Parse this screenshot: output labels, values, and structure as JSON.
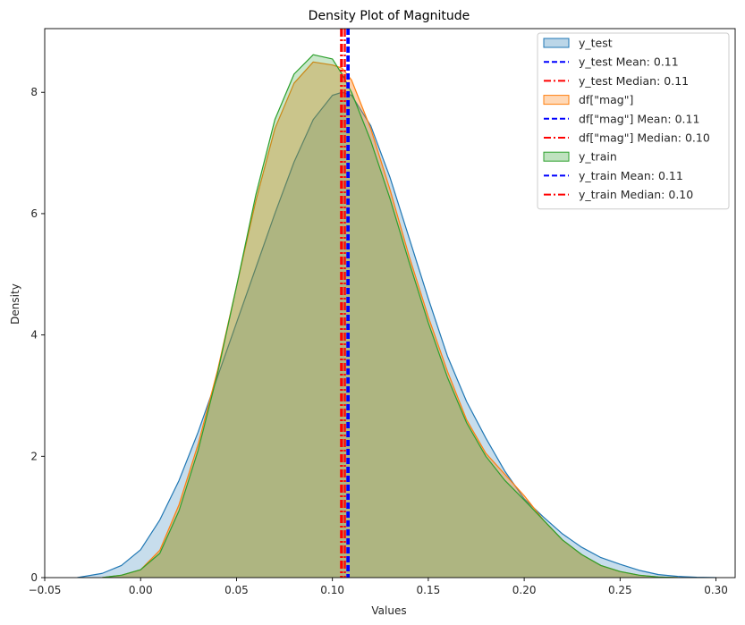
{
  "chart_data": {
    "type": "area",
    "title": "Density Plot of Magnitude",
    "xlabel": "Values",
    "ylabel": "Density",
    "xlim": [
      -0.05,
      0.31
    ],
    "ylim": [
      0,
      9.05
    ],
    "xticks": [
      -0.05,
      0.0,
      0.05,
      0.1,
      0.15,
      0.2,
      0.25,
      0.3
    ],
    "xtick_labels": [
      "−0.05",
      "0.00",
      "0.05",
      "0.10",
      "0.15",
      "0.20",
      "0.25",
      "0.30"
    ],
    "yticks": [
      0,
      2,
      4,
      6,
      8
    ],
    "ytick_labels": [
      "0",
      "2",
      "4",
      "6",
      "8"
    ],
    "grid": false,
    "legend_position": "top-right",
    "series": [
      {
        "name": "y_test",
        "color": "#1f77b4",
        "fill_alpha": 0.25,
        "x": [
          -0.033,
          -0.02,
          -0.01,
          0.0,
          0.01,
          0.02,
          0.03,
          0.04,
          0.05,
          0.06,
          0.07,
          0.08,
          0.09,
          0.1,
          0.105,
          0.11,
          0.12,
          0.13,
          0.14,
          0.15,
          0.16,
          0.17,
          0.18,
          0.19,
          0.2,
          0.21,
          0.22,
          0.23,
          0.24,
          0.25,
          0.26,
          0.27,
          0.28,
          0.29,
          0.3
        ],
        "y": [
          0.0,
          0.07,
          0.2,
          0.46,
          0.95,
          1.6,
          2.4,
          3.3,
          4.2,
          5.1,
          6.0,
          6.85,
          7.55,
          7.95,
          8.0,
          7.95,
          7.45,
          6.6,
          5.6,
          4.6,
          3.65,
          2.9,
          2.3,
          1.75,
          1.3,
          1.0,
          0.72,
          0.5,
          0.33,
          0.22,
          0.12,
          0.05,
          0.02,
          0.005,
          0.0
        ]
      },
      {
        "name": "df[\"mag\"]",
        "color": "#ff7f0e",
        "fill_alpha": 0.35,
        "x": [
          -0.02,
          -0.01,
          0.0,
          0.01,
          0.02,
          0.03,
          0.04,
          0.05,
          0.06,
          0.07,
          0.08,
          0.09,
          0.1,
          0.105,
          0.11,
          0.12,
          0.13,
          0.14,
          0.15,
          0.16,
          0.17,
          0.18,
          0.19,
          0.2,
          0.21,
          0.22,
          0.23,
          0.24,
          0.25,
          0.26,
          0.27,
          0.28
        ],
        "y": [
          0.0,
          0.04,
          0.13,
          0.45,
          1.2,
          2.2,
          3.4,
          4.8,
          6.2,
          7.4,
          8.15,
          8.5,
          8.45,
          8.4,
          8.2,
          7.4,
          6.4,
          5.3,
          4.3,
          3.4,
          2.6,
          2.05,
          1.7,
          1.35,
          0.95,
          0.62,
          0.38,
          0.2,
          0.1,
          0.04,
          0.01,
          0.0
        ]
      },
      {
        "name": "y_train",
        "color": "#2ca02c",
        "fill_alpha": 0.25,
        "x": [
          -0.02,
          -0.01,
          0.0,
          0.01,
          0.02,
          0.03,
          0.04,
          0.05,
          0.06,
          0.07,
          0.08,
          0.09,
          0.1,
          0.105,
          0.11,
          0.12,
          0.13,
          0.14,
          0.15,
          0.16,
          0.17,
          0.18,
          0.19,
          0.2,
          0.21,
          0.22,
          0.23,
          0.24,
          0.25,
          0.26,
          0.27,
          0.28
        ],
        "y": [
          0.0,
          0.04,
          0.13,
          0.4,
          1.1,
          2.1,
          3.35,
          4.8,
          6.3,
          7.55,
          8.3,
          8.62,
          8.55,
          8.3,
          8.0,
          7.2,
          6.25,
          5.2,
          4.2,
          3.3,
          2.55,
          2.0,
          1.6,
          1.28,
          0.95,
          0.62,
          0.38,
          0.2,
          0.1,
          0.04,
          0.01,
          0.0
        ]
      }
    ],
    "vertical_lines": [
      {
        "label": "y_test Mean: 0.11",
        "x": 0.1085,
        "color": "#0000ff",
        "style": "dashed"
      },
      {
        "label": "y_test Median: 0.11",
        "x": 0.1065,
        "color": "#ff0000",
        "style": "dashdot"
      },
      {
        "label": "df[\"mag\"] Mean: 0.11",
        "x": 0.108,
        "color": "#0000ff",
        "style": "dashed"
      },
      {
        "label": "df[\"mag\"] Median: 0.10",
        "x": 0.105,
        "color": "#ff0000",
        "style": "dashdot"
      },
      {
        "label": "y_train Mean: 0.11",
        "x": 0.1078,
        "color": "#0000ff",
        "style": "dashed"
      },
      {
        "label": "y_train Median: 0.10",
        "x": 0.1045,
        "color": "#ff0000",
        "style": "dashdot"
      }
    ],
    "legend": [
      {
        "label": "y_test",
        "kind": "patch",
        "color": "#1f77b4"
      },
      {
        "label": "y_test Mean: 0.11",
        "kind": "line",
        "color": "#0000ff",
        "style": "dashed"
      },
      {
        "label": "y_test Median: 0.11",
        "kind": "line",
        "color": "#ff0000",
        "style": "dashdot"
      },
      {
        "label": "df[\"mag\"]",
        "kind": "patch",
        "color": "#ff7f0e"
      },
      {
        "label": "df[\"mag\"] Mean: 0.11",
        "kind": "line",
        "color": "#0000ff",
        "style": "dashed"
      },
      {
        "label": "df[\"mag\"] Median: 0.10",
        "kind": "line",
        "color": "#ff0000",
        "style": "dashdot"
      },
      {
        "label": "y_train",
        "kind": "patch",
        "color": "#2ca02c"
      },
      {
        "label": "y_train Mean: 0.11",
        "kind": "line",
        "color": "#0000ff",
        "style": "dashed"
      },
      {
        "label": "y_train Median: 0.10",
        "kind": "line",
        "color": "#ff0000",
        "style": "dashdot"
      }
    ]
  }
}
